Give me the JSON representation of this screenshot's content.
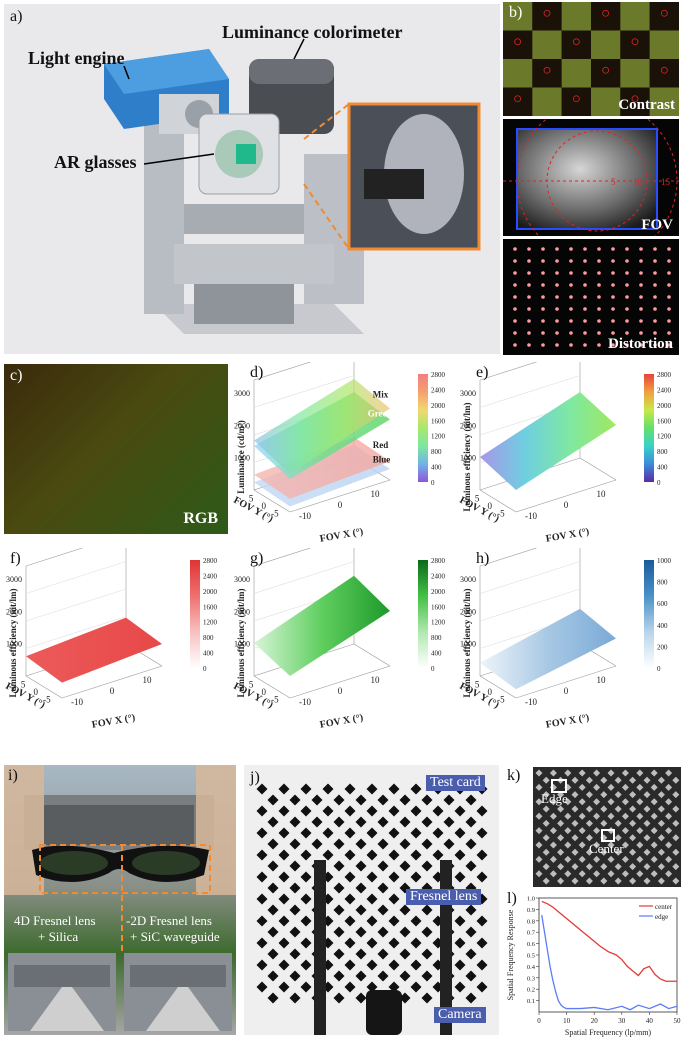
{
  "panel_a": {
    "label": "a)",
    "light_engine": "Light engine",
    "colorimeter": "Luminance colorimeter",
    "ar_glasses": "AR glasses"
  },
  "panel_b": {
    "label": "b)",
    "contrast": "Contrast",
    "fov": "FOV",
    "distortion": "Distortion",
    "fov_ticks": [
      "5",
      "10",
      "15"
    ]
  },
  "panel_c": {
    "label": "c)",
    "rgb": "RGB"
  },
  "panel_d": {
    "label": "d)",
    "zlabel": "Luminance (cd/m²)",
    "xlabel": "FOV X (°)",
    "ylabel": "FOV Y (°)",
    "layers": [
      "Mix",
      "Green",
      "Red",
      "Blue"
    ],
    "zticks": [
      "1000",
      "2000",
      "3000"
    ],
    "xticks": [
      "-10",
      "0",
      "10"
    ],
    "yticks": [
      "5",
      "0",
      "-5"
    ],
    "cbar": [
      "2800",
      "2400",
      "2000",
      "1600",
      "1200",
      "800",
      "400",
      "0"
    ]
  },
  "panel_e": {
    "label": "e)",
    "zlabel": "Luminous efficiency (nit/lm)",
    "xlabel": "FOV X (°)",
    "ylabel": "FOV Y (°)",
    "zticks": [
      "1000",
      "2000",
      "3000"
    ],
    "xticks": [
      "-10",
      "0",
      "10"
    ],
    "yticks": [
      "5",
      "0",
      "-5"
    ],
    "cbar": [
      "2800",
      "2400",
      "2000",
      "1600",
      "1200",
      "800",
      "400",
      "0"
    ]
  },
  "panel_f": {
    "label": "f)",
    "zlabel": "Luminous efficiency (nit/lm)",
    "xlabel": "FOV X (°)",
    "ylabel": "FOV Y (°)",
    "zticks": [
      "1000",
      "2000",
      "3000"
    ],
    "xticks": [
      "-10",
      "0",
      "10"
    ],
    "yticks": [
      "5",
      "0",
      "-5"
    ],
    "cbar": [
      "2800",
      "2400",
      "2000",
      "1600",
      "1200",
      "800",
      "400",
      "0"
    ]
  },
  "panel_g": {
    "label": "g)",
    "zlabel": "Luminous efficiency (nit/lm)",
    "xlabel": "FOV X (°)",
    "ylabel": "FOV Y (°)",
    "zticks": [
      "1000",
      "2000",
      "3000"
    ],
    "xticks": [
      "-10",
      "0",
      "10"
    ],
    "yticks": [
      "5",
      "0",
      "-5"
    ],
    "cbar": [
      "2800",
      "2400",
      "2000",
      "1600",
      "1200",
      "800",
      "400",
      "0"
    ]
  },
  "panel_h": {
    "label": "h)",
    "zlabel": "Luminous efficiency (nit/lm)",
    "xlabel": "FOV X (°)",
    "ylabel": "FOV Y (°)",
    "zticks": [
      "1000",
      "2000",
      "3000"
    ],
    "xticks": [
      "-10",
      "0",
      "10"
    ],
    "yticks": [
      "5",
      "0",
      "-5"
    ],
    "cbar": [
      "1000",
      "800",
      "600",
      "400",
      "200",
      "0"
    ]
  },
  "panel_i": {
    "label": "i)",
    "left_caption_1": "4D Fresnel lens",
    "left_caption_2": "+ Silica",
    "right_caption_1": "-2D Fresnel lens",
    "right_caption_2": "+ SiC waveguide"
  },
  "panel_j": {
    "label": "j)",
    "test_card": "Test card",
    "fresnel_lens": "Fresnel lens",
    "camera": "Camera"
  },
  "panel_k": {
    "label": "k)",
    "edge": "Edge",
    "center": "Center"
  },
  "panel_l": {
    "label": "l)",
    "legend_center": "center",
    "legend_edge": "edge",
    "xlabel": "Spatial Frequency (lp/mm)",
    "ylabel": "Spatial Frequency Response",
    "xticks": [
      "0",
      "10",
      "20",
      "30",
      "40",
      "50"
    ],
    "yticks": [
      "0.1",
      "0.2",
      "0.3",
      "0.4",
      "0.5",
      "0.6",
      "0.7",
      "0.8",
      "0.9",
      "1.0"
    ]
  },
  "chart_data": [
    {
      "type": "line",
      "panel": "l",
      "xlabel": "Spatial Frequency (lp/mm)",
      "ylabel": "Spatial Frequency Response",
      "xlim": [
        0,
        50
      ],
      "ylim": [
        0.0,
        1.0
      ],
      "series": [
        {
          "name": "center",
          "color": "#e53935",
          "x": [
            1,
            3,
            5,
            8,
            10,
            13,
            16,
            19,
            22,
            25,
            28,
            30,
            32,
            34,
            36,
            38,
            40,
            42,
            44,
            46,
            48,
            50
          ],
          "y": [
            0.97,
            0.95,
            0.92,
            0.86,
            0.82,
            0.76,
            0.7,
            0.64,
            0.58,
            0.53,
            0.5,
            0.46,
            0.4,
            0.36,
            0.32,
            0.38,
            0.4,
            0.33,
            0.29,
            0.27,
            0.27,
            0.27
          ]
        },
        {
          "name": "edge",
          "color": "#5c7cfa",
          "x": [
            1,
            2,
            3,
            4,
            5,
            6,
            7,
            8,
            9,
            10,
            12,
            15,
            20,
            25,
            30,
            33,
            36,
            40,
            44,
            47,
            50
          ],
          "y": [
            0.85,
            0.7,
            0.55,
            0.4,
            0.28,
            0.18,
            0.1,
            0.06,
            0.04,
            0.03,
            0.03,
            0.03,
            0.04,
            0.02,
            0.05,
            0.02,
            0.06,
            0.03,
            0.07,
            0.03,
            0.05
          ]
        }
      ]
    }
  ]
}
